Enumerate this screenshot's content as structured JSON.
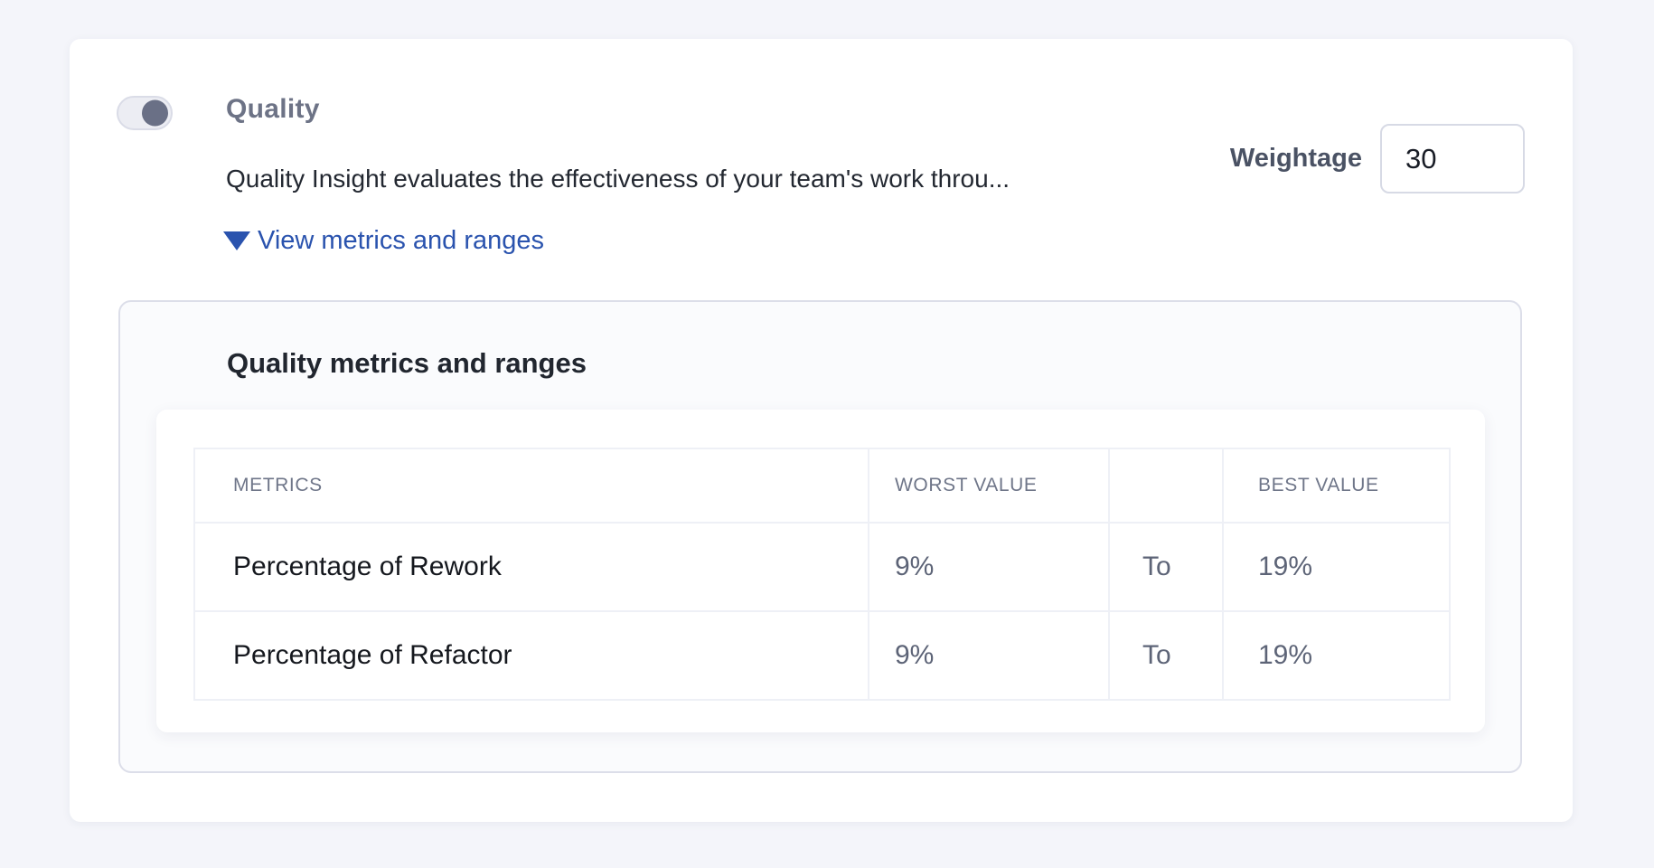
{
  "colors": {
    "page_background": "#f4f5fa",
    "link_blue": "#2a53ae",
    "toggle_knob": "#6a7086",
    "panel_border": "#dcdee9"
  },
  "quality_section": {
    "toggle": {
      "state": "on"
    },
    "title": "Quality",
    "description": "Quality Insight evaluates the effectiveness of your team's work throu...",
    "weightage": {
      "label": "Weightage",
      "value": "30"
    },
    "metrics_link": {
      "label": "View metrics and ranges",
      "icon": "triangle-down-icon"
    }
  },
  "metrics_panel": {
    "heading": "Quality metrics and ranges",
    "table": {
      "columns": [
        "METRICS",
        "WORST VALUE",
        "",
        "BEST VALUE"
      ],
      "rows": [
        {
          "metric": "Percentage of Rework",
          "worst_value": "9%",
          "separator": "To",
          "best_value": "19%"
        },
        {
          "metric": "Percentage of Refactor",
          "worst_value": "9%",
          "separator": "To",
          "best_value": "19%"
        }
      ]
    }
  }
}
